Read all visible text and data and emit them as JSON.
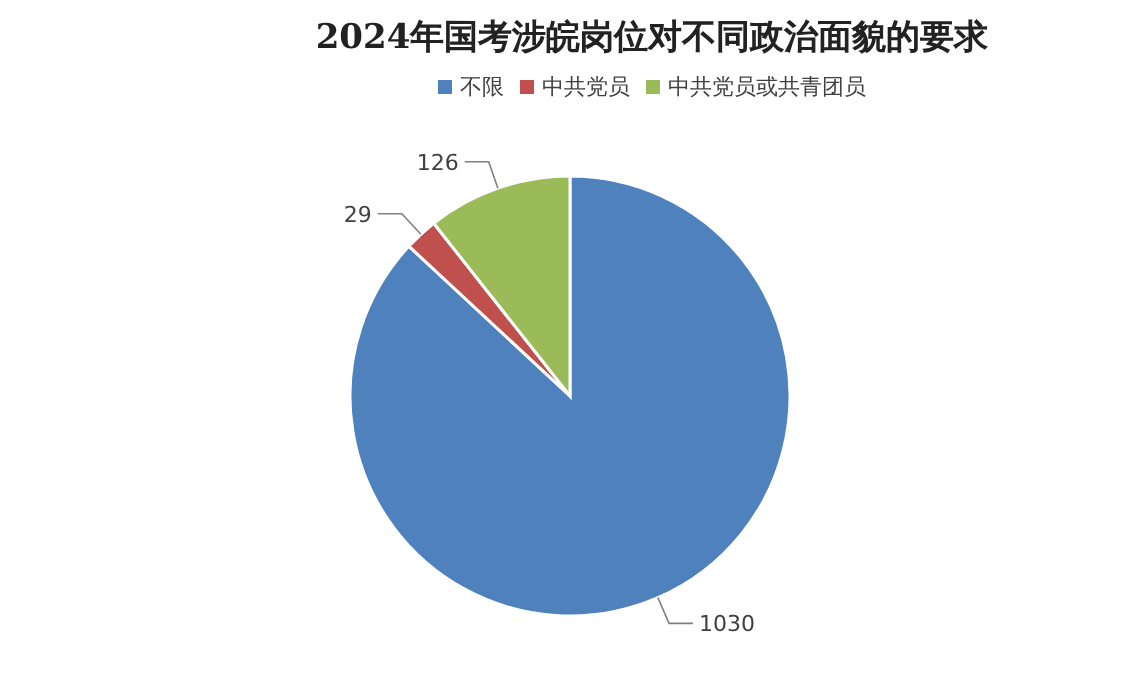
{
  "chart_data": {
    "type": "pie",
    "title": "2024年国考涉皖岗位对不同政治面貌的要求",
    "categories": [
      "不限",
      "中共党员",
      "中共党员或共青团员"
    ],
    "values": [
      1030,
      29,
      126
    ],
    "colors": [
      "#4f81bd",
      "#c0504d",
      "#9bbb59"
    ],
    "legend": "top",
    "data_labels": true
  }
}
